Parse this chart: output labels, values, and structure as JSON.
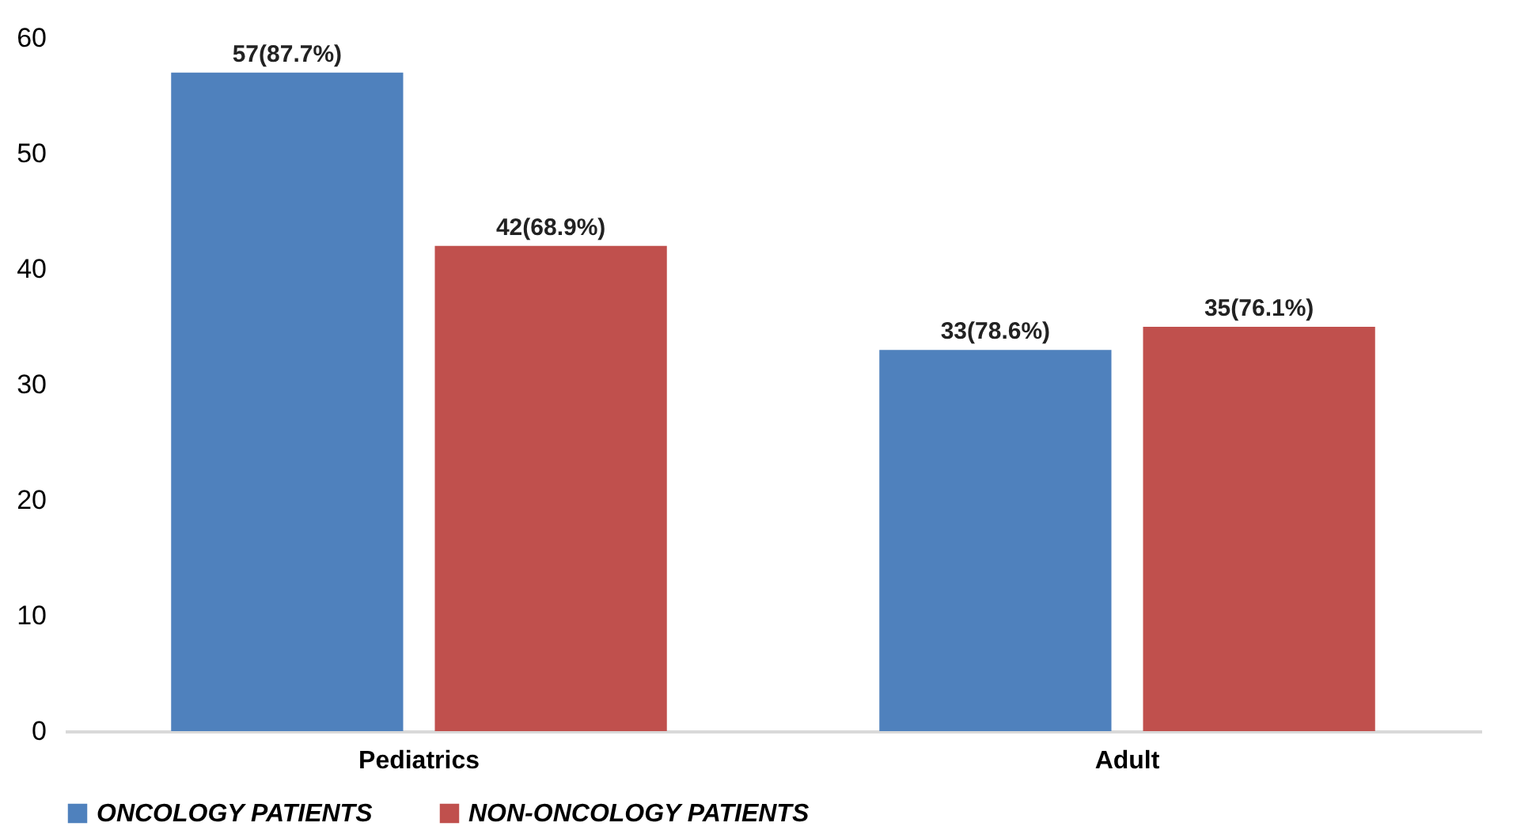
{
  "chart_data": {
    "type": "bar",
    "categories": [
      "Pediatrics",
      "Adult"
    ],
    "series": [
      {
        "name": "ONCOLOGY PATIENTS",
        "color": "#4f81bd",
        "values": [
          57,
          33
        ],
        "value_labels": [
          "57(87.7%)",
          "33(78.6%)"
        ]
      },
      {
        "name": "NON-ONCOLOGY PATIENTS",
        "color": "#c0504d",
        "values": [
          42,
          35
        ],
        "value_labels": [
          "42(68.9%)",
          "35(76.1%)"
        ]
      }
    ],
    "ylim": [
      0,
      60
    ],
    "yticks": [
      0,
      10,
      20,
      30,
      40,
      50,
      60
    ],
    "grid": false,
    "legend": "bottom"
  }
}
